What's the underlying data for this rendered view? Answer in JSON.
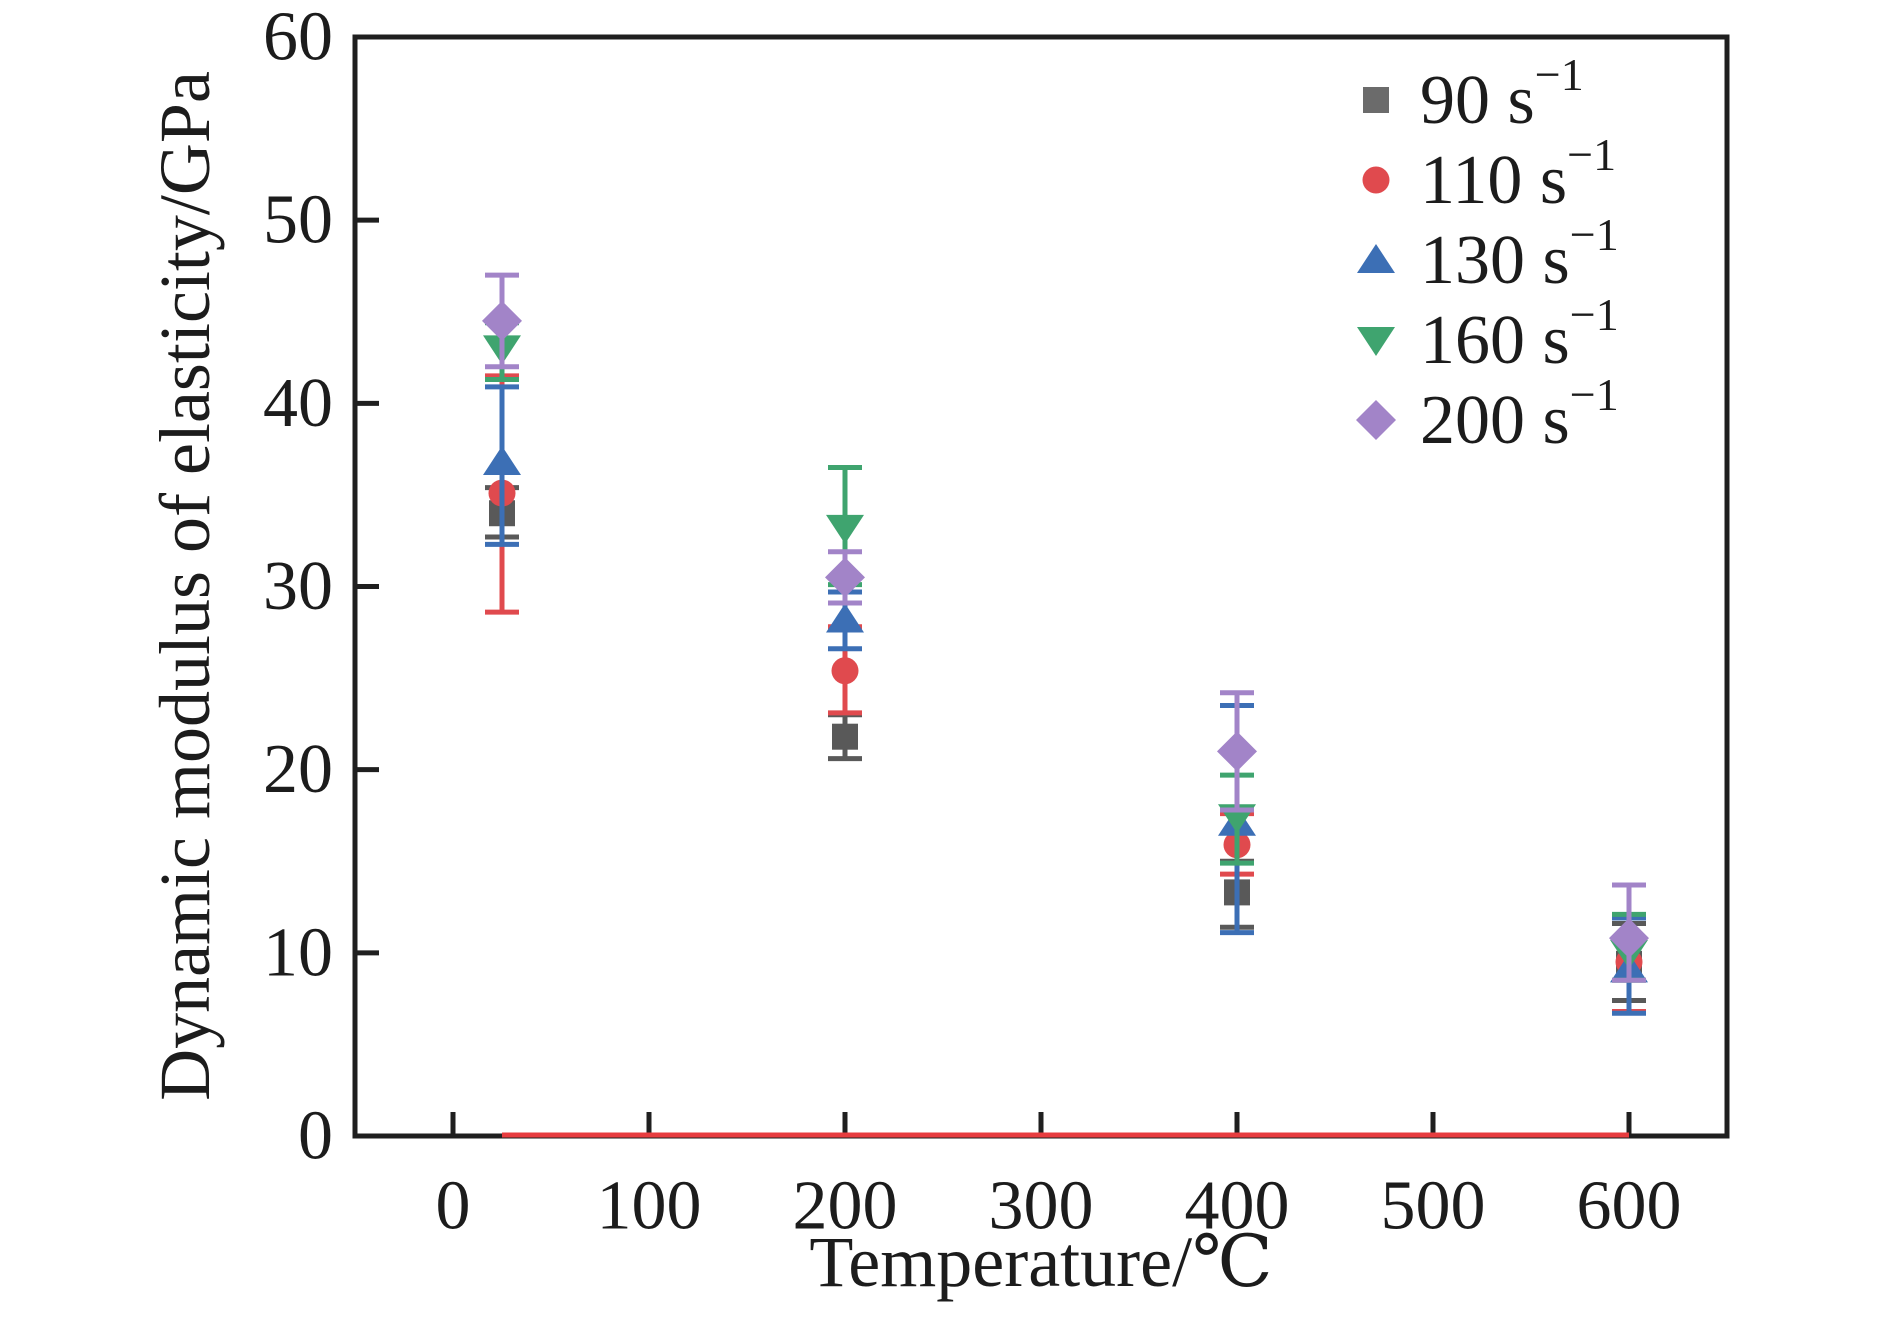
{
  "figure": {
    "background_color": "#ffffff",
    "axis_color": "#1f1f1f"
  },
  "chart_data": {
    "type": "scatter",
    "title": "",
    "xlabel": "Temperature/℃",
    "ylabel": "Dynamic modulus of elasticity/GPa",
    "xlim": [
      -50,
      650
    ],
    "ylim": [
      0,
      60
    ],
    "x_ticks": [
      0,
      100,
      200,
      300,
      400,
      500,
      600
    ],
    "y_ticks": [
      0,
      10,
      20,
      30,
      40,
      50,
      60
    ],
    "grid": false,
    "legend_position": "upper right",
    "error_bars": true,
    "x": [
      25,
      200,
      400,
      600
    ],
    "series": [
      {
        "name": "90 s⁻¹",
        "label_base": "90 s",
        "label_sup": "−1",
        "marker": "square",
        "color": "#595959",
        "values": [
          34.0,
          21.8,
          13.3,
          9.4
        ],
        "err_low": [
          32.7,
          20.6,
          11.4,
          7.4
        ],
        "err_high": [
          35.4,
          23.0,
          15.0,
          11.6
        ]
      },
      {
        "name": "110 s⁻¹",
        "label_base": "110 s",
        "label_sup": "−1",
        "marker": "circle",
        "color": "#e04a4e",
        "values": [
          35.1,
          25.4,
          15.9,
          9.5
        ],
        "err_low": [
          28.6,
          23.1,
          14.3,
          6.8
        ],
        "err_high": [
          41.5,
          27.8,
          17.6,
          12.0
        ]
      },
      {
        "name": "130 s⁻¹",
        "label_base": "130 s",
        "label_sup": "−1",
        "marker": "triangle-up",
        "color": "#3c6fb5",
        "values": [
          36.8,
          28.2,
          17.1,
          9.1
        ],
        "err_low": [
          32.3,
          26.6,
          11.1,
          6.7
        ],
        "err_high": [
          40.9,
          29.7,
          23.5,
          11.9
        ]
      },
      {
        "name": "160 s⁻¹",
        "label_base": "160 s",
        "label_sup": "−1",
        "marker": "triangle-down",
        "color": "#3fa46f",
        "values": [
          43.0,
          33.2,
          17.4,
          10.0
        ],
        "err_low": [
          41.3,
          30.1,
          14.9,
          8.5
        ],
        "err_high": [
          44.4,
          36.5,
          19.7,
          12.1
        ]
      },
      {
        "name": "200 s⁻¹",
        "label_base": "200 s",
        "label_sup": "−1",
        "marker": "diamond",
        "color": "#a284c8",
        "values": [
          44.5,
          30.5,
          21.0,
          10.8
        ],
        "err_low": [
          42.0,
          29.1,
          17.8,
          8.5
        ],
        "err_high": [
          47.0,
          31.9,
          24.2,
          13.7
        ]
      }
    ],
    "annotations": [
      {
        "type": "hline-segment",
        "y": 0,
        "x_start": 25,
        "x_end": 600,
        "color": "#e73c3f",
        "note": "red line drawn along the x-axis between the first and last data points"
      }
    ]
  },
  "axes_text": {
    "x_title": "Temperature/℃",
    "y_title": "Dynamic modulus of elasticity/GPa",
    "x_tick_labels": [
      "0",
      "100",
      "200",
      "300",
      "400",
      "500",
      "600"
    ],
    "y_tick_labels": [
      "0",
      "10",
      "20",
      "30",
      "40",
      "50",
      "60"
    ]
  },
  "legend": {
    "items": [
      {
        "label": "90 s⁻¹",
        "marker": "square",
        "color": "#6b6b6b"
      },
      {
        "label": "110 s⁻¹",
        "marker": "circle",
        "color": "#e04a4e"
      },
      {
        "label": "130 s⁻¹",
        "marker": "triangle-up",
        "color": "#3c6fb5"
      },
      {
        "label": "160 s⁻¹",
        "marker": "triangle-down",
        "color": "#3fa46f"
      },
      {
        "label": "200 s⁻¹",
        "marker": "diamond",
        "color": "#a284c8"
      }
    ]
  }
}
